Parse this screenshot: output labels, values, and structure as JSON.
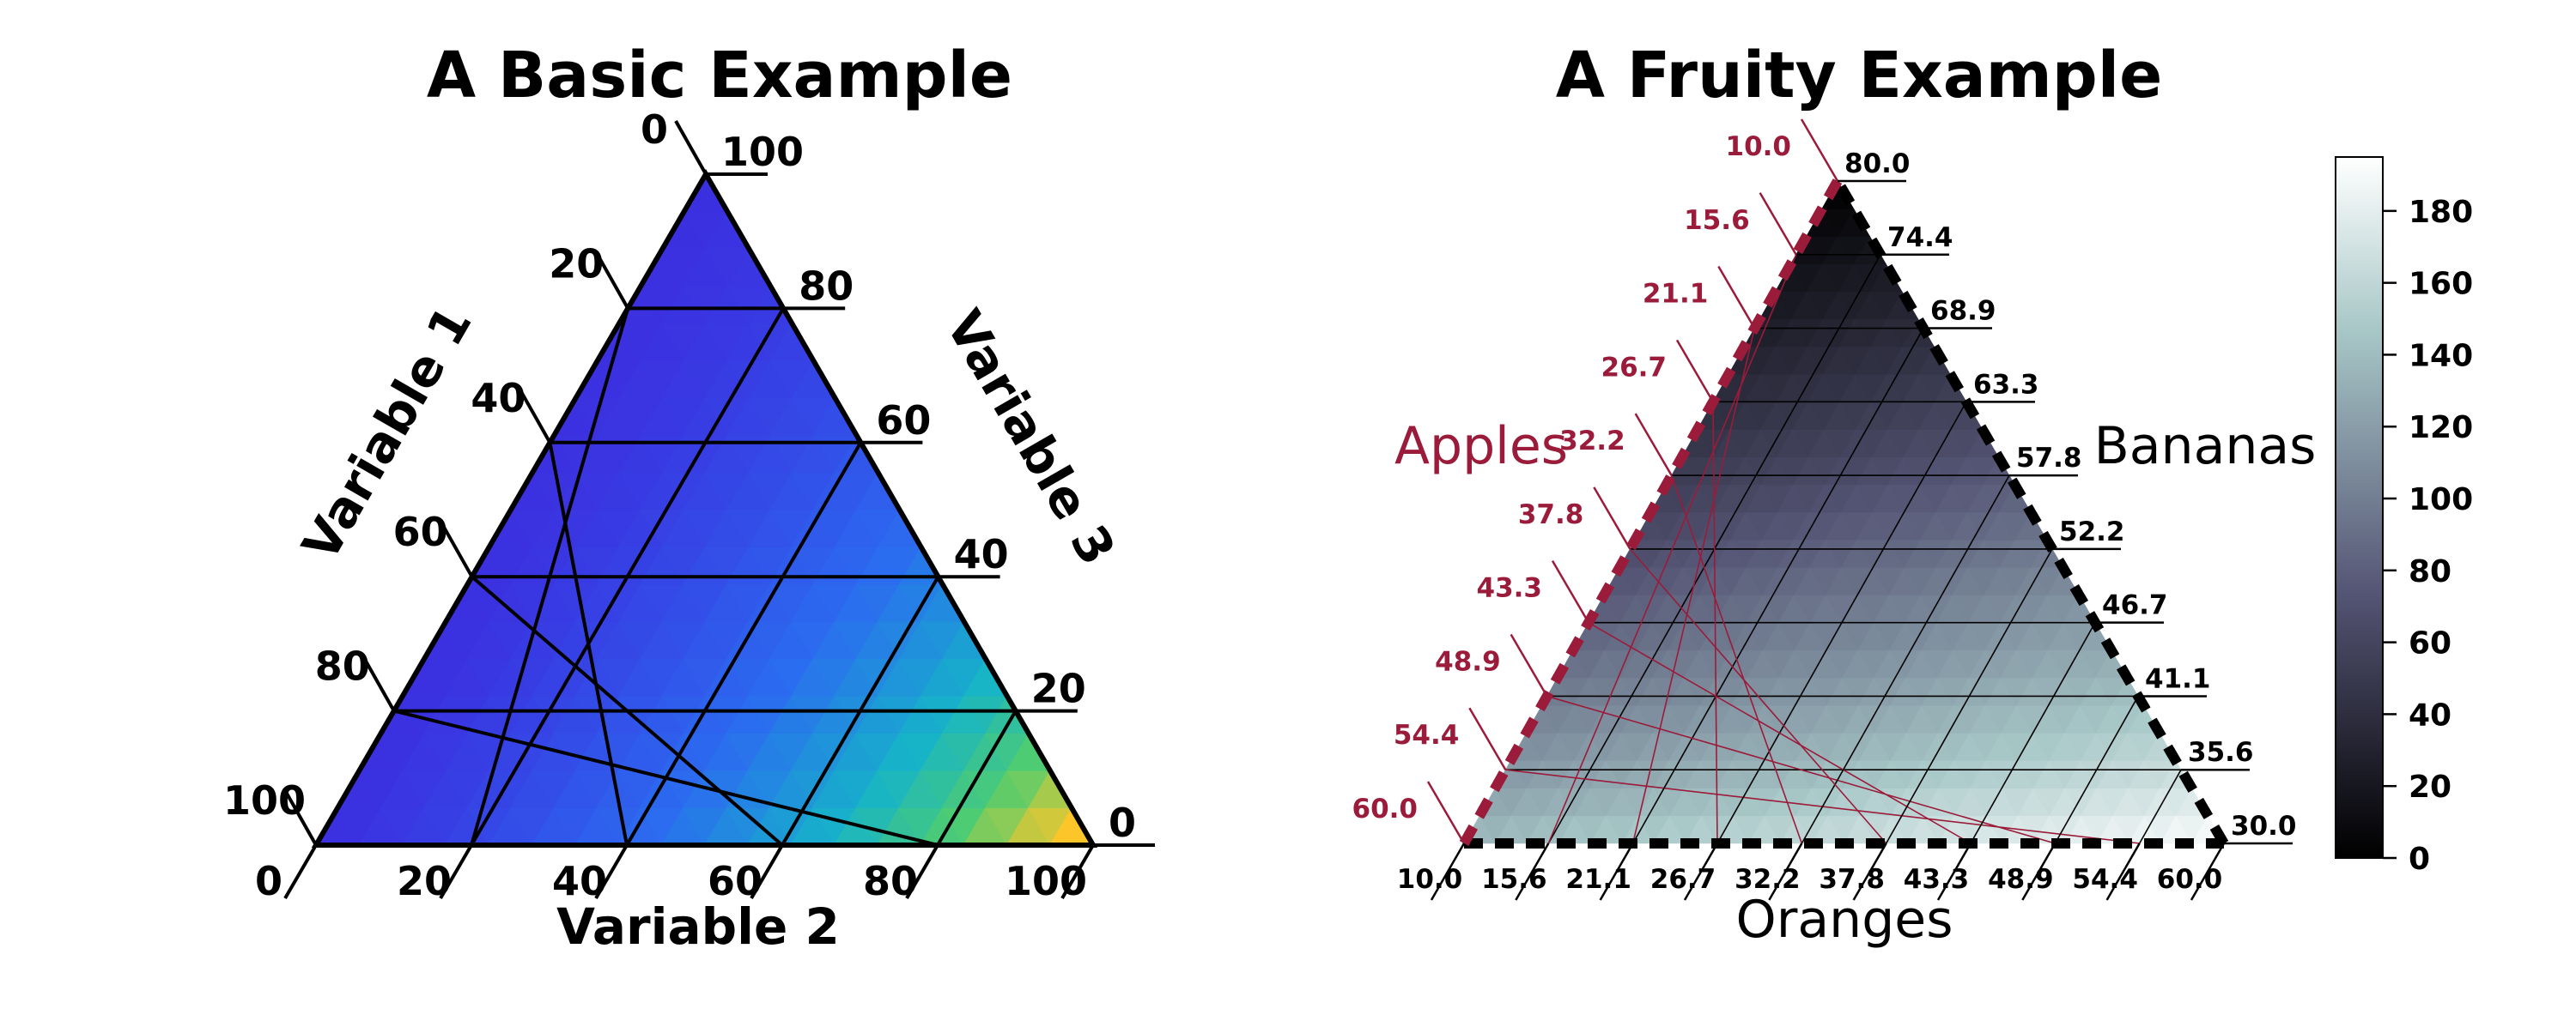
{
  "chart_data": [
    {
      "type": "heatmap",
      "subtype": "ternary",
      "title": "A Basic Example",
      "axis_labels": {
        "left": "Variable 1",
        "bottom": "Variable 2",
        "right": "Variable 3"
      },
      "ticks": {
        "left": [
          "100",
          "80",
          "60",
          "40",
          "20",
          "0"
        ],
        "bottom": [
          "0",
          "20",
          "40",
          "60",
          "80",
          "100"
        ],
        "right": [
          "0",
          "20",
          "40",
          "60",
          "80",
          "100"
        ]
      },
      "gridlines": 5,
      "colormap": "viridis-like (blue at top/left corners to yellow at bottom-right corner)",
      "colors": {
        "low": "#3b30e0",
        "mid": "#17b7c8",
        "high": "#fcc62a"
      }
    },
    {
      "type": "heatmap",
      "subtype": "ternary",
      "title": "A Fruity Example",
      "axis_labels": {
        "left": "Apples",
        "bottom": "Oranges",
        "right": "Bananas"
      },
      "ticks": {
        "left": [
          "60.0",
          "54.4",
          "48.9",
          "43.3",
          "37.8",
          "32.2",
          "26.7",
          "21.1",
          "15.6",
          "10.0"
        ],
        "bottom": [
          "10.0",
          "15.6",
          "21.1",
          "26.7",
          "32.2",
          "37.8",
          "43.3",
          "48.9",
          "54.4",
          "60.0"
        ],
        "right": [
          "30.0",
          "35.6",
          "41.1",
          "46.7",
          "52.2",
          "57.8",
          "63.3",
          "68.9",
          "74.4",
          "80.0"
        ]
      },
      "gridlines": 9,
      "colormap": "bone",
      "colorbar": {
        "range": [
          0,
          195
        ],
        "ticks": [
          "0",
          "20",
          "40",
          "60",
          "80",
          "100",
          "120",
          "140",
          "160",
          "180"
        ]
      },
      "colors": {
        "apples_axis": "#9b1b3a",
        "grid": "#000000"
      }
    }
  ]
}
